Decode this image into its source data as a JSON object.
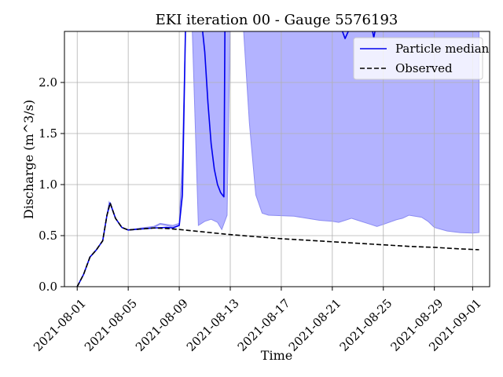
{
  "chart_data": {
    "type": "line",
    "title": "EKI iteration 00 - Gauge 5576193",
    "xlabel": "Time",
    "ylabel": "Discharge (m^3/s)",
    "xlim": [
      "2021-07-31T00:00",
      "2021-09-02T08:00"
    ],
    "ylim": [
      0,
      2.5
    ],
    "x_ticks": [
      "2021-08-01",
      "2021-08-05",
      "2021-08-09",
      "2021-08-13",
      "2021-08-17",
      "2021-08-21",
      "2021-08-25",
      "2021-08-29",
      "2021-09-01"
    ],
    "y_ticks": [
      0.0,
      0.5,
      1.0,
      1.5,
      2.0
    ],
    "y_tick_labels": [
      "0.0",
      "0.5",
      "1.0",
      "1.5",
      "2.0"
    ],
    "grid": true,
    "legend_position": "top-right",
    "band": {
      "description": "particle ensemble range",
      "color": "#b3b3ff",
      "edge_color": "#8c8cf2",
      "upper": [
        [
          "2021-08-01T00:00",
          0.0
        ],
        [
          "2021-08-01T12:00",
          0.12
        ],
        [
          "2021-08-02T00:00",
          0.29
        ],
        [
          "2021-08-02T12:00",
          0.36
        ],
        [
          "2021-08-03T00:00",
          0.45
        ],
        [
          "2021-08-03T12:00",
          0.83
        ],
        [
          "2021-08-04T00:00",
          0.67
        ],
        [
          "2021-08-04T12:00",
          0.58
        ],
        [
          "2021-08-05T00:00",
          0.555
        ],
        [
          "2021-08-06T00:00",
          0.565
        ],
        [
          "2021-08-07T00:00",
          0.58
        ],
        [
          "2021-08-07T12:00",
          0.61
        ],
        [
          "2021-08-08T00:00",
          0.6
        ],
        [
          "2021-08-08T12:00",
          0.58
        ],
        [
          "2021-08-09T00:00",
          0.6
        ],
        [
          "2021-08-09T06:00",
          1.1
        ],
        [
          "2021-08-09T12:00",
          2.6
        ],
        [
          "2021-08-10T00:00",
          2.6
        ],
        [
          "2021-08-10T12:00",
          0.6
        ],
        [
          "2021-08-11T00:00",
          0.64
        ],
        [
          "2021-08-11T12:00",
          0.66
        ],
        [
          "2021-08-12T00:00",
          0.63
        ],
        [
          "2021-08-12T08:00",
          0.56
        ],
        [
          "2021-08-12T18:00",
          0.7
        ],
        [
          "2021-08-13T00:00",
          2.6
        ],
        [
          "2021-08-14T00:00",
          2.6
        ],
        [
          "2021-08-14T12:00",
          1.6
        ],
        [
          "2021-08-15T00:00",
          0.9
        ],
        [
          "2021-08-15T12:00",
          0.72
        ],
        [
          "2021-08-16T00:00",
          0.7
        ],
        [
          "2021-08-17T00:00",
          0.695
        ],
        [
          "2021-08-18T00:00",
          0.69
        ],
        [
          "2021-08-19T00:00",
          0.67
        ],
        [
          "2021-08-20T00:00",
          0.65
        ],
        [
          "2021-08-21T00:00",
          0.64
        ],
        [
          "2021-08-21T12:00",
          0.63
        ],
        [
          "2021-08-22T00:00",
          0.65
        ],
        [
          "2021-08-22T12:00",
          0.67
        ],
        [
          "2021-08-23T00:00",
          0.65
        ],
        [
          "2021-08-24T00:00",
          0.61
        ],
        [
          "2021-08-24T12:00",
          0.59
        ],
        [
          "2021-08-25T00:00",
          0.61
        ],
        [
          "2021-08-26T00:00",
          0.655
        ],
        [
          "2021-08-26T12:00",
          0.67
        ],
        [
          "2021-08-27T00:00",
          0.7
        ],
        [
          "2021-08-28T00:00",
          0.68
        ],
        [
          "2021-08-28T12:00",
          0.64
        ],
        [
          "2021-08-29T00:00",
          0.58
        ],
        [
          "2021-08-30T00:00",
          0.545
        ],
        [
          "2021-08-31T00:00",
          0.53
        ],
        [
          "2021-09-01T00:00",
          0.525
        ],
        [
          "2021-09-01T12:00",
          0.53
        ]
      ],
      "upper_top": [
        [
          "2021-08-01T00:00",
          0.0
        ],
        [
          "2021-08-01T12:00",
          0.12
        ],
        [
          "2021-08-02T00:00",
          0.29
        ],
        [
          "2021-08-02T12:00",
          0.36
        ],
        [
          "2021-08-03T00:00",
          0.45
        ],
        [
          "2021-08-03T12:00",
          0.83
        ],
        [
          "2021-08-04T00:00",
          0.67
        ],
        [
          "2021-08-04T12:00",
          0.58
        ],
        [
          "2021-08-05T00:00",
          0.555
        ],
        [
          "2021-08-06T00:00",
          0.575
        ],
        [
          "2021-08-07T00:00",
          0.59
        ],
        [
          "2021-08-07T12:00",
          0.62
        ],
        [
          "2021-08-08T00:00",
          0.61
        ],
        [
          "2021-08-08T12:00",
          0.6
        ],
        [
          "2021-08-09T00:00",
          0.62
        ],
        [
          "2021-08-09T06:00",
          1.3
        ],
        [
          "2021-08-09T12:00",
          2.6
        ],
        [
          "2021-09-01T12:00",
          2.6
        ]
      ]
    },
    "series": [
      {
        "name": "Particle median",
        "color": "#0000ee",
        "style": "solid",
        "points": [
          [
            "2021-08-01T00:00",
            0.0
          ],
          [
            "2021-08-01T12:00",
            0.12
          ],
          [
            "2021-08-02T00:00",
            0.29
          ],
          [
            "2021-08-02T12:00",
            0.36
          ],
          [
            "2021-08-03T00:00",
            0.45
          ],
          [
            "2021-08-03T08:00",
            0.7
          ],
          [
            "2021-08-03T14:00",
            0.82
          ],
          [
            "2021-08-04T00:00",
            0.67
          ],
          [
            "2021-08-04T12:00",
            0.58
          ],
          [
            "2021-08-05T00:00",
            0.555
          ],
          [
            "2021-08-06T00:00",
            0.565
          ],
          [
            "2021-08-07T00:00",
            0.575
          ],
          [
            "2021-08-08T00:00",
            0.58
          ],
          [
            "2021-08-08T12:00",
            0.575
          ],
          [
            "2021-08-09T00:00",
            0.6
          ],
          [
            "2021-08-09T06:00",
            0.9
          ],
          [
            "2021-08-09T12:00",
            2.6
          ],
          [
            "2021-08-10T18:00",
            2.6
          ],
          [
            "2021-08-11T00:00",
            2.3
          ],
          [
            "2021-08-11T06:00",
            1.8
          ],
          [
            "2021-08-11T12:00",
            1.4
          ],
          [
            "2021-08-11T18:00",
            1.15
          ],
          [
            "2021-08-12T00:00",
            1.0
          ],
          [
            "2021-08-12T06:00",
            0.92
          ],
          [
            "2021-08-12T12:00",
            0.88
          ],
          [
            "2021-08-12T14:00",
            2.6
          ],
          [
            "2021-08-13T00:00",
            2.6
          ],
          [
            "2021-08-21T12:00",
            2.6
          ],
          [
            "2021-08-22T00:00",
            2.43
          ],
          [
            "2021-08-22T06:00",
            2.5
          ],
          [
            "2021-08-22T12:00",
            2.6
          ],
          [
            "2021-08-24T00:00",
            2.6
          ],
          [
            "2021-08-24T06:00",
            2.44
          ],
          [
            "2021-08-24T12:00",
            2.6
          ]
        ]
      },
      {
        "name": "Observed",
        "color": "#000000",
        "style": "dashed",
        "points": [
          [
            "2021-08-01T00:00",
            0.0
          ],
          [
            "2021-08-01T12:00",
            0.12
          ],
          [
            "2021-08-02T00:00",
            0.29
          ],
          [
            "2021-08-02T12:00",
            0.36
          ],
          [
            "2021-08-03T00:00",
            0.45
          ],
          [
            "2021-08-03T08:00",
            0.7
          ],
          [
            "2021-08-03T14:00",
            0.82
          ],
          [
            "2021-08-04T00:00",
            0.67
          ],
          [
            "2021-08-04T12:00",
            0.58
          ],
          [
            "2021-08-05T00:00",
            0.555
          ],
          [
            "2021-08-06T00:00",
            0.565
          ],
          [
            "2021-08-07T00:00",
            0.575
          ],
          [
            "2021-08-08T00:00",
            0.57
          ],
          [
            "2021-08-09T00:00",
            0.56
          ],
          [
            "2021-08-11T00:00",
            0.535
          ],
          [
            "2021-08-13T00:00",
            0.51
          ],
          [
            "2021-08-15T00:00",
            0.49
          ],
          [
            "2021-08-17T00:00",
            0.47
          ],
          [
            "2021-08-19T00:00",
            0.455
          ],
          [
            "2021-08-21T00:00",
            0.44
          ],
          [
            "2021-08-23T00:00",
            0.425
          ],
          [
            "2021-08-25T00:00",
            0.41
          ],
          [
            "2021-08-27T00:00",
            0.395
          ],
          [
            "2021-08-29T00:00",
            0.385
          ],
          [
            "2021-08-31T00:00",
            0.37
          ],
          [
            "2021-09-01T12:00",
            0.362
          ]
        ]
      }
    ]
  }
}
